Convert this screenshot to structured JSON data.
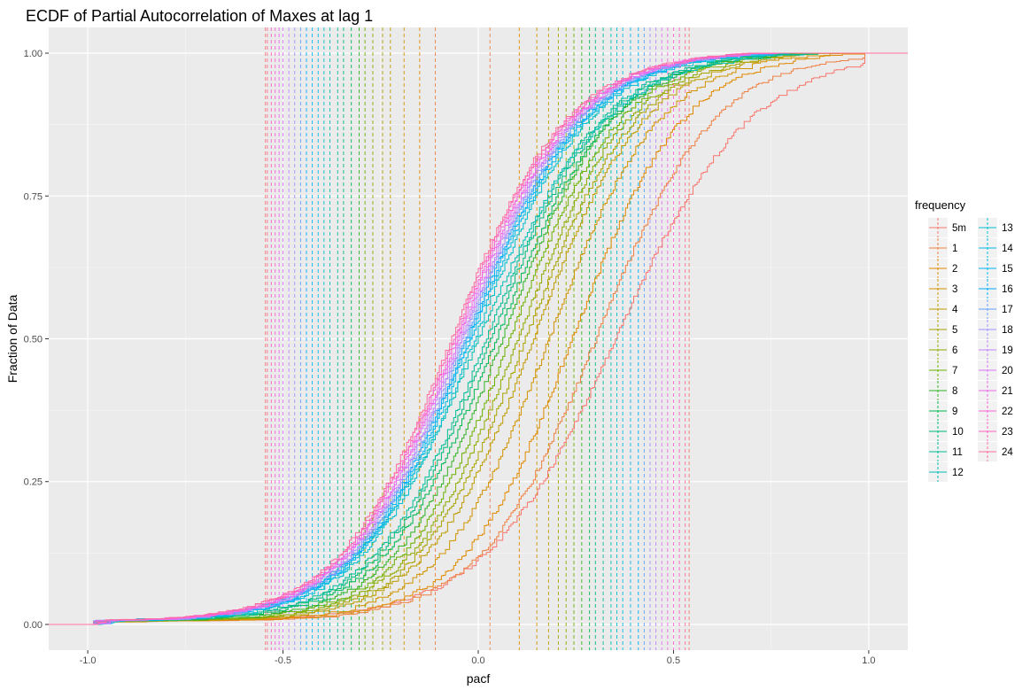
{
  "chart_data": {
    "type": "line",
    "title": "ECDF of Partial Autocorrelation of Maxes at lag 1",
    "xlabel": "pacf",
    "ylabel": "Fraction of Data",
    "xlim": [
      -1.1,
      1.1
    ],
    "ylim": [
      0,
      1.0
    ],
    "x_ticks": [
      -1.0,
      -0.5,
      0.0,
      0.5,
      1.0
    ],
    "x_tick_labels": [
      "-1.0",
      "-0.5",
      "0.0",
      "0.5",
      "1.0"
    ],
    "y_ticks": [
      0,
      0.25,
      0.5,
      0.75,
      1.0
    ],
    "y_tick_labels": [
      "0.00",
      "0.25",
      "0.50",
      "0.75",
      "1.00"
    ],
    "grid": true,
    "legend_title": "frequency",
    "legend_position": "right",
    "series": [
      {
        "name": "5m",
        "color": "#F8766D",
        "ecdf_center": 0.35,
        "ecdf_spread": 0.17,
        "vlines": [
          -0.545,
          0.54
        ]
      },
      {
        "name": "1",
        "color": "#EE8043",
        "ecdf_center": 0.3,
        "ecdf_spread": 0.15,
        "vlines": [
          -0.11,
          0.03
        ]
      },
      {
        "name": "2",
        "color": "#E18A00",
        "ecdf_center": 0.24,
        "ecdf_spread": 0.14,
        "vlines": [
          -0.15,
          0.105
        ]
      },
      {
        "name": "3",
        "color": "#D19300",
        "ecdf_center": 0.18,
        "ecdf_spread": 0.14,
        "vlines": [
          -0.19,
          0.15
        ]
      },
      {
        "name": "4",
        "color": "#BE9C00",
        "ecdf_center": 0.14,
        "ecdf_spread": 0.14,
        "vlines": [
          -0.225,
          0.18
        ]
      },
      {
        "name": "5",
        "color": "#A8A400",
        "ecdf_center": 0.12,
        "ecdf_spread": 0.14,
        "vlines": [
          -0.245,
          0.205
        ]
      },
      {
        "name": "6",
        "color": "#8EAB00",
        "ecdf_center": 0.1,
        "ecdf_spread": 0.14,
        "vlines": [
          -0.27,
          0.225
        ]
      },
      {
        "name": "7",
        "color": "#6BB100",
        "ecdf_center": 0.08,
        "ecdf_spread": 0.14,
        "vlines": [
          -0.29,
          0.245
        ]
      },
      {
        "name": "8",
        "color": "#31B425",
        "ecdf_center": 0.06,
        "ecdf_spread": 0.14,
        "vlines": [
          -0.305,
          0.265
        ]
      },
      {
        "name": "9",
        "color": "#00B853",
        "ecdf_center": 0.045,
        "ecdf_spread": 0.145,
        "vlines": [
          -0.325,
          0.285
        ]
      },
      {
        "name": "10",
        "color": "#00BB78",
        "ecdf_center": 0.03,
        "ecdf_spread": 0.145,
        "vlines": [
          -0.345,
          0.3
        ]
      },
      {
        "name": "11",
        "color": "#00BD98",
        "ecdf_center": 0.02,
        "ecdf_spread": 0.145,
        "vlines": [
          -0.36,
          0.32
        ]
      },
      {
        "name": "12",
        "color": "#00BFB4",
        "ecdf_center": 0.0,
        "ecdf_spread": 0.16,
        "vlines": [
          -0.38,
          0.34
        ]
      },
      {
        "name": "13",
        "color": "#00BECE",
        "ecdf_center": -0.01,
        "ecdf_spread": 0.145,
        "vlines": [
          -0.395,
          0.355
        ]
      },
      {
        "name": "14",
        "color": "#00BBE3",
        "ecdf_center": -0.02,
        "ecdf_spread": 0.145,
        "vlines": [
          -0.41,
          0.37
        ]
      },
      {
        "name": "15",
        "color": "#00B6F5",
        "ecdf_center": -0.025,
        "ecdf_spread": 0.145,
        "vlines": [
          -0.425,
          0.39
        ]
      },
      {
        "name": "16",
        "color": "#00ADFA",
        "ecdf_center": -0.03,
        "ecdf_spread": 0.145,
        "vlines": [
          -0.44,
          0.41
        ]
      },
      {
        "name": "17",
        "color": "#62A0FF",
        "ecdf_center": -0.035,
        "ecdf_spread": 0.145,
        "vlines": [
          -0.455,
          0.425
        ]
      },
      {
        "name": "18",
        "color": "#9D93FF",
        "ecdf_center": -0.04,
        "ecdf_spread": 0.145,
        "vlines": [
          -0.47,
          0.44
        ]
      },
      {
        "name": "19",
        "color": "#C481FF",
        "ecdf_center": -0.045,
        "ecdf_spread": 0.145,
        "vlines": [
          -0.485,
          0.455
        ]
      },
      {
        "name": "20",
        "color": "#DE71F9",
        "ecdf_center": -0.05,
        "ecdf_spread": 0.145,
        "vlines": [
          -0.5,
          0.47
        ]
      },
      {
        "name": "21",
        "color": "#F066EA",
        "ecdf_center": -0.055,
        "ecdf_spread": 0.145,
        "vlines": [
          -0.51,
          0.485
        ]
      },
      {
        "name": "22",
        "color": "#FB61D7",
        "ecdf_center": -0.06,
        "ecdf_spread": 0.145,
        "vlines": [
          -0.52,
          0.5
        ]
      },
      {
        "name": "23",
        "color": "#FF62BE",
        "ecdf_center": -0.065,
        "ecdf_spread": 0.145,
        "vlines": [
          -0.53,
          0.515
        ]
      },
      {
        "name": "24",
        "color": "#FF6C9F",
        "ecdf_center": -0.07,
        "ecdf_spread": 0.145,
        "vlines": [
          -0.54,
          0.53
        ]
      }
    ]
  }
}
